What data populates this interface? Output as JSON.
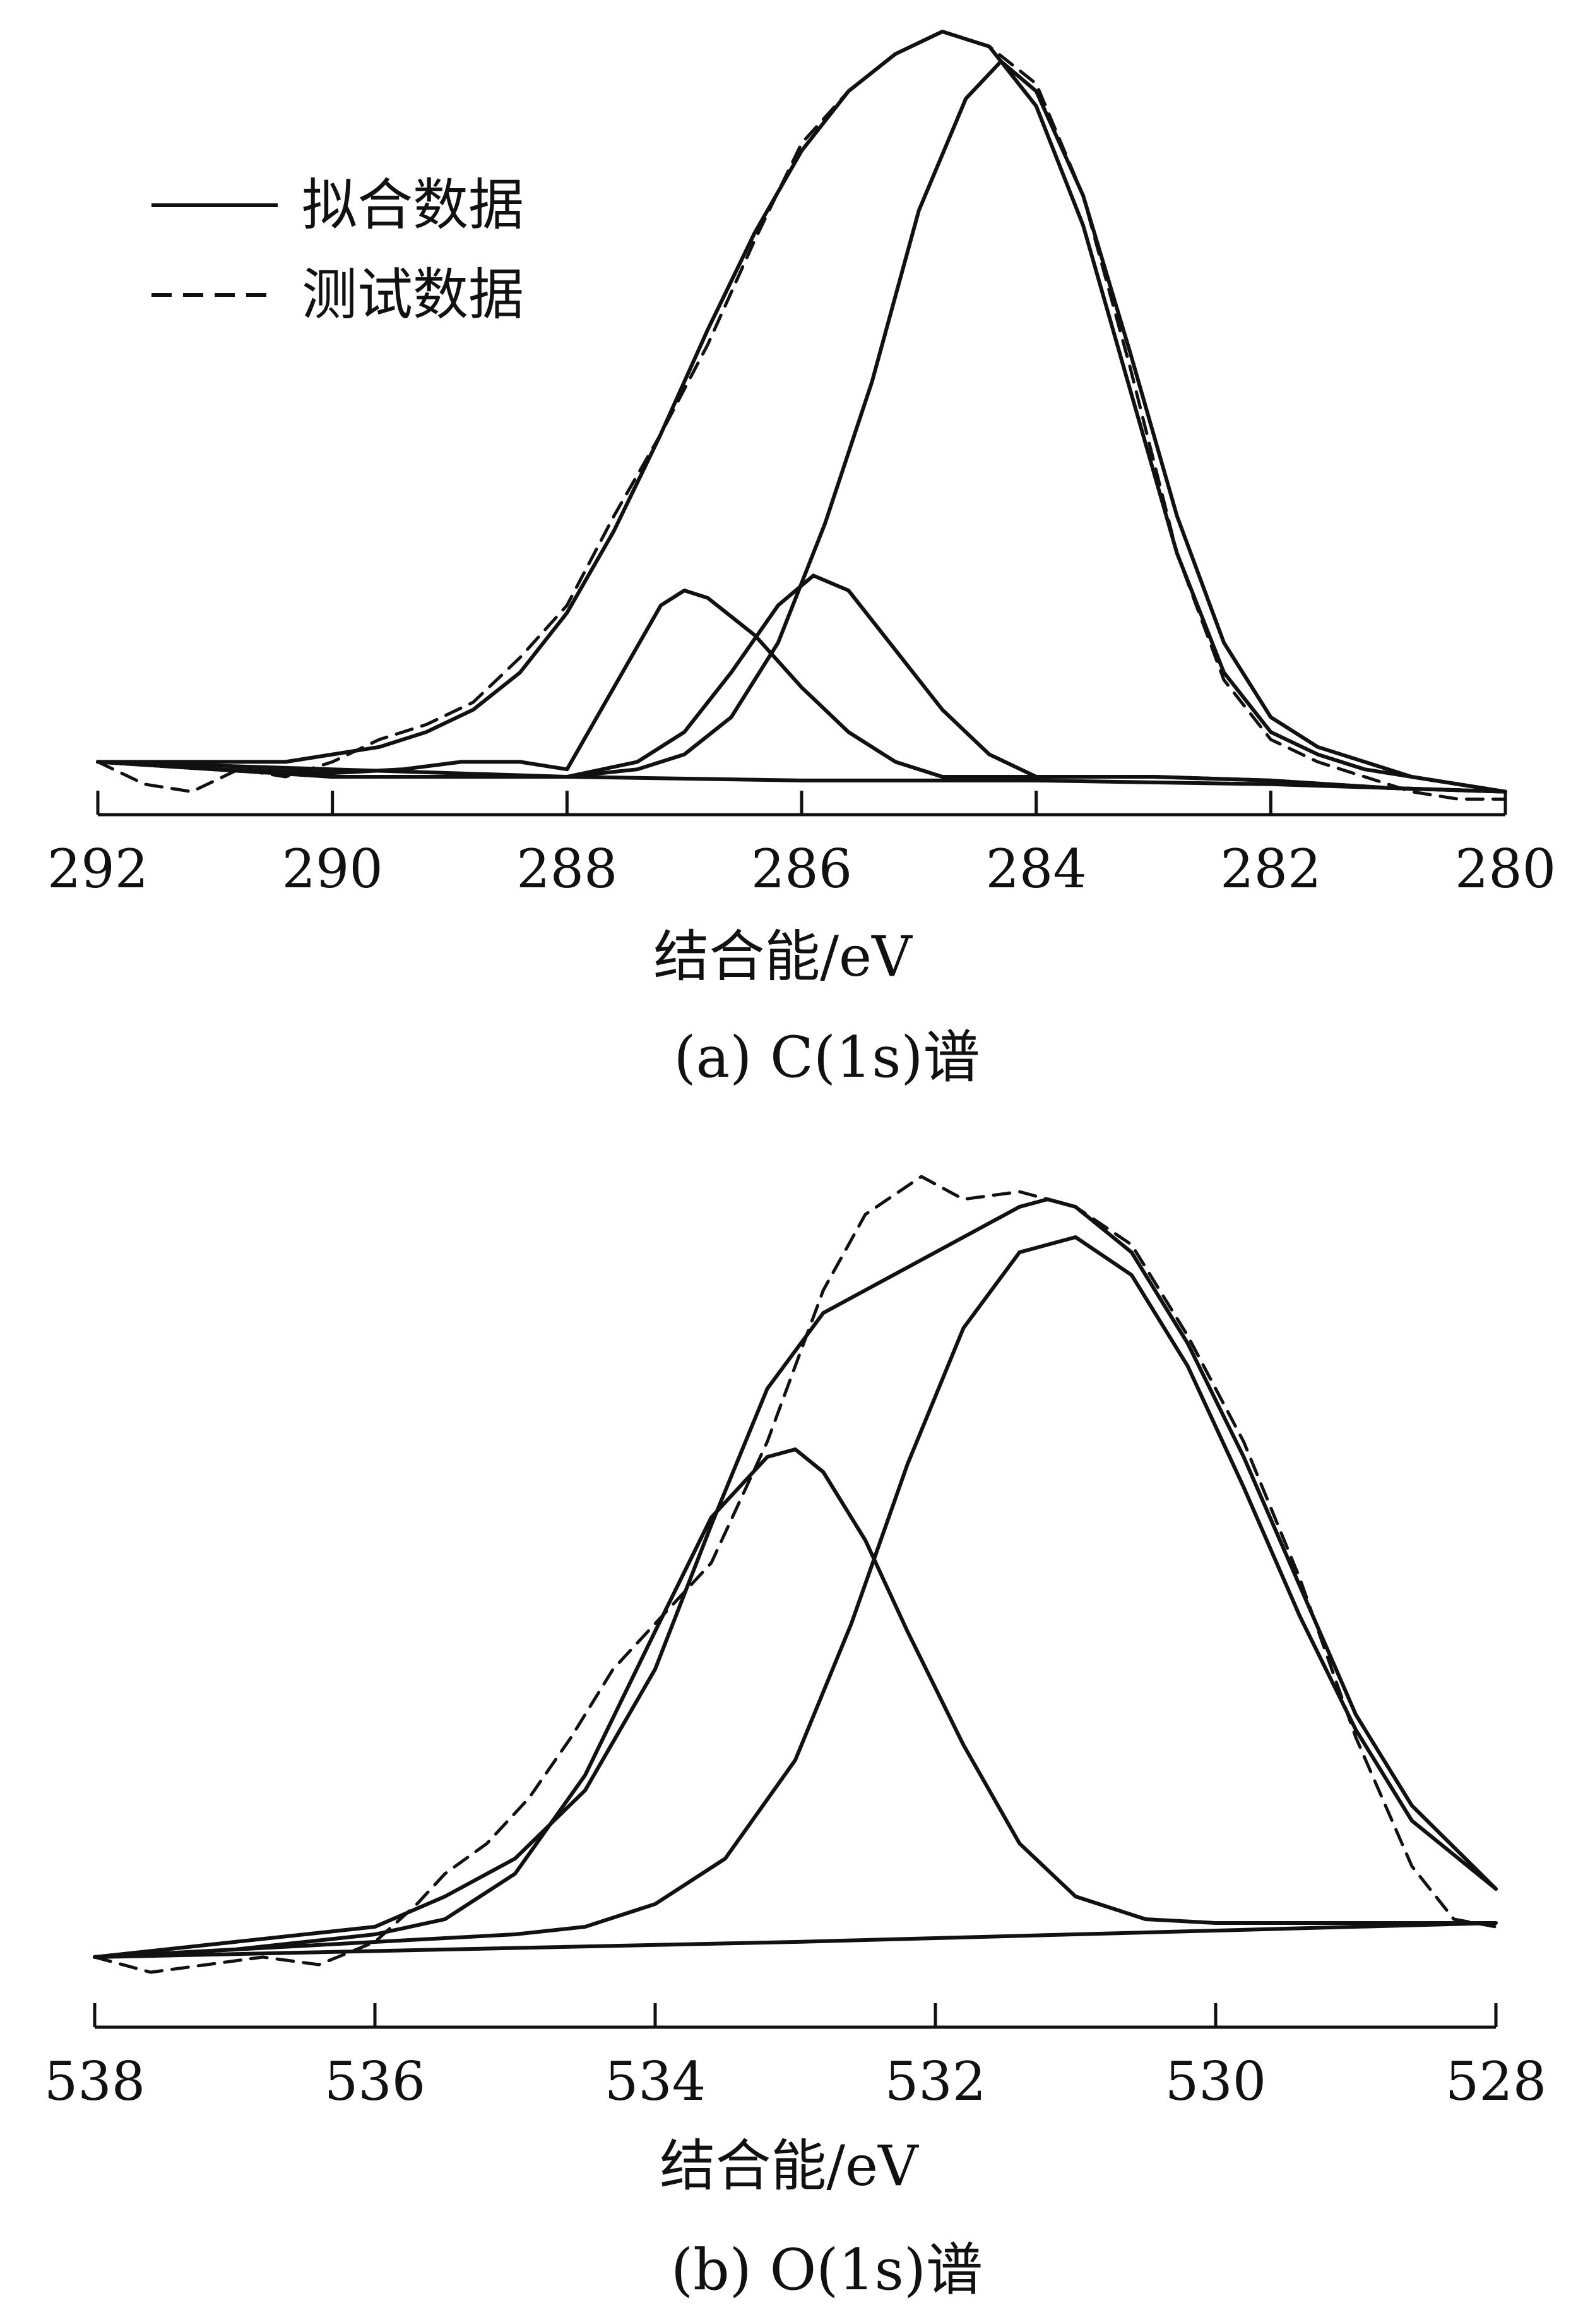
{
  "legend": {
    "fitted_label": "拟合数据",
    "measured_label": "测试数据"
  },
  "chart_data": [
    {
      "type": "line",
      "caption": "(a) C(1s)谱",
      "xlabel": "结合能/eV",
      "ylabel": "",
      "xlim": [
        292,
        280
      ],
      "x_reversed": true,
      "y_axis_shown": false,
      "grid": false,
      "legend_position": "top-left",
      "xticks": [
        292,
        290,
        288,
        286,
        284,
        282,
        280
      ],
      "series": [
        {
          "name": "测试数据",
          "style": "dashed",
          "x": [
            292,
            291.6,
            291.2,
            290.8,
            290.4,
            290.0,
            289.6,
            289.2,
            288.8,
            288.4,
            288.0,
            287.6,
            287.2,
            286.8,
            286.4,
            286.0,
            285.6,
            285.2,
            284.8,
            284.4,
            284.0,
            283.6,
            283.2,
            282.8,
            282.4,
            282.0,
            281.6,
            281.2,
            280.8,
            280.4,
            280.0
          ],
          "y": [
            0.02,
            -0.01,
            -0.02,
            0.01,
            0.0,
            0.02,
            0.05,
            0.07,
            0.1,
            0.16,
            0.23,
            0.35,
            0.46,
            0.58,
            0.72,
            0.85,
            0.92,
            0.97,
            1.0,
            0.98,
            0.93,
            0.78,
            0.55,
            0.3,
            0.13,
            0.05,
            0.02,
            0.0,
            -0.02,
            -0.03,
            -0.03
          ]
        },
        {
          "name": "拟合数据",
          "style": "solid",
          "x": [
            292,
            291.6,
            291.2,
            290.8,
            290.4,
            290.0,
            289.6,
            289.2,
            288.8,
            288.4,
            288.0,
            287.6,
            287.2,
            286.8,
            286.4,
            286.0,
            285.6,
            285.2,
            284.8,
            284.4,
            284.0,
            283.6,
            283.2,
            282.8,
            282.4,
            282.0,
            281.6,
            281.2,
            280.8,
            280.4,
            280.0
          ],
          "y": [
            0.02,
            0.02,
            0.02,
            0.02,
            0.02,
            0.03,
            0.04,
            0.06,
            0.09,
            0.14,
            0.22,
            0.33,
            0.46,
            0.6,
            0.73,
            0.84,
            0.92,
            0.97,
            1.0,
            0.98,
            0.9,
            0.74,
            0.52,
            0.3,
            0.14,
            0.06,
            0.03,
            0.01,
            0.0,
            -0.01,
            -0.02
          ]
        },
        {
          "name": "",
          "style": "solid",
          "x": [
            292,
            291,
            290,
            289.4,
            288.9,
            288.4,
            288.0,
            287.6,
            287.2,
            287.0,
            286.8,
            286.4,
            286.0,
            285.6,
            285.2,
            284.8,
            284.4,
            284.0,
            283.0,
            282.0,
            281.0,
            280.0
          ],
          "y": [
            0.02,
            0.01,
            0.005,
            0.01,
            0.02,
            0.02,
            0.01,
            0.12,
            0.23,
            0.25,
            0.24,
            0.19,
            0.12,
            0.06,
            0.02,
            0.0,
            0.0,
            0.0,
            0.0,
            -0.005,
            -0.015,
            -0.02
          ]
        },
        {
          "name": "",
          "style": "solid",
          "x": [
            292,
            291,
            290,
            289,
            288.0,
            287.4,
            287.0,
            286.6,
            286.2,
            285.9,
            285.6,
            285.2,
            284.8,
            284.4,
            284.0,
            283.5,
            283.0,
            282.0,
            281.0,
            280.0
          ],
          "y": [
            0.02,
            0.01,
            0.0,
            0.0,
            0.0,
            0.02,
            0.06,
            0.14,
            0.23,
            0.27,
            0.25,
            0.17,
            0.09,
            0.03,
            0.0,
            0.0,
            0.0,
            -0.005,
            -0.015,
            -0.02
          ]
        },
        {
          "name": "",
          "style": "solid",
          "x": [
            292,
            291,
            290,
            289,
            288.0,
            287.4,
            287.0,
            286.6,
            286.2,
            285.8,
            285.4,
            285.0,
            284.6,
            284.3,
            284.0,
            283.6,
            283.2,
            282.8,
            282.4,
            282.0,
            281.6,
            281.2,
            280.8,
            280.4,
            280.0
          ],
          "y": [
            0.02,
            0.01,
            0.0,
            0.0,
            0.0,
            0.01,
            0.03,
            0.08,
            0.18,
            0.34,
            0.53,
            0.76,
            0.91,
            0.96,
            0.92,
            0.78,
            0.57,
            0.35,
            0.18,
            0.08,
            0.04,
            0.02,
            0.0,
            -0.01,
            -0.02
          ]
        },
        {
          "name": "",
          "style": "solid",
          "x": [
            292,
            290,
            288,
            286,
            284,
            282,
            280
          ],
          "y": [
            0.02,
            0.01,
            0.0,
            -0.005,
            -0.005,
            -0.01,
            -0.02
          ]
        }
      ]
    },
    {
      "type": "line",
      "caption": "(b) O(1s)谱",
      "xlabel": "结合能/eV",
      "ylabel": "",
      "xlim": [
        538,
        528
      ],
      "x_reversed": true,
      "y_axis_shown": false,
      "grid": false,
      "xticks": [
        538,
        536,
        534,
        532,
        530,
        528
      ],
      "series": [
        {
          "name": "测试数据",
          "style": "dashed",
          "x": [
            538,
            537.6,
            537.2,
            536.8,
            536.4,
            536.0,
            535.7,
            535.5,
            535.2,
            534.9,
            534.6,
            534.3,
            534.0,
            533.6,
            533.2,
            532.8,
            532.5,
            532.1,
            531.8,
            531.4,
            531.0,
            530.6,
            530.2,
            529.8,
            529.4,
            529.0,
            528.6,
            528.3,
            528.0
          ],
          "y": [
            -0.02,
            -0.04,
            -0.03,
            -0.02,
            -0.03,
            0.0,
            0.05,
            0.09,
            0.13,
            0.19,
            0.27,
            0.36,
            0.42,
            0.5,
            0.66,
            0.86,
            0.96,
            1.01,
            0.98,
            0.99,
            0.97,
            0.92,
            0.8,
            0.66,
            0.48,
            0.27,
            0.1,
            0.03,
            0.02
          ]
        },
        {
          "name": "拟合数据",
          "style": "solid",
          "x": [
            538,
            537.5,
            537.0,
            536.5,
            536.0,
            535.5,
            535.0,
            534.5,
            534.0,
            533.6,
            533.2,
            532.8,
            532.5,
            532.2,
            531.8,
            531.4,
            531.2,
            531.0,
            530.6,
            530.2,
            529.8,
            529.4,
            529.0,
            528.6,
            528.0
          ],
          "y": [
            -0.02,
            -0.01,
            0.0,
            0.01,
            0.02,
            0.06,
            0.11,
            0.2,
            0.36,
            0.55,
            0.73,
            0.83,
            0.86,
            0.89,
            0.93,
            0.97,
            0.98,
            0.97,
            0.91,
            0.79,
            0.64,
            0.47,
            0.3,
            0.18,
            0.07
          ]
        },
        {
          "name": "",
          "style": "solid",
          "x": [
            538,
            537,
            536,
            535.5,
            535.0,
            534.5,
            534.0,
            533.6,
            533.2,
            533.0,
            532.8,
            532.5,
            532.2,
            531.8,
            531.4,
            531.0,
            530.5,
            530.0,
            529.5,
            529.0,
            528.5,
            528.0
          ],
          "y": [
            -0.02,
            -0.01,
            0.01,
            0.03,
            0.09,
            0.22,
            0.41,
            0.56,
            0.64,
            0.65,
            0.62,
            0.53,
            0.41,
            0.26,
            0.13,
            0.06,
            0.03,
            0.025,
            0.025,
            0.025,
            0.025,
            0.025
          ]
        },
        {
          "name": "",
          "style": "solid",
          "x": [
            538,
            537,
            536,
            535,
            534.5,
            534.0,
            533.5,
            533.0,
            532.6,
            532.2,
            531.8,
            531.4,
            531.0,
            530.6,
            530.2,
            529.8,
            529.4,
            529.0,
            528.6,
            528.0
          ],
          "y": [
            -0.02,
            -0.01,
            0.0,
            0.01,
            0.02,
            0.05,
            0.11,
            0.24,
            0.42,
            0.63,
            0.81,
            0.91,
            0.93,
            0.88,
            0.76,
            0.6,
            0.43,
            0.28,
            0.16,
            0.07
          ]
        },
        {
          "name": "",
          "style": "solid",
          "x": [
            538,
            533,
            528
          ],
          "y": [
            -0.02,
            0.0,
            0.025
          ]
        }
      ]
    }
  ]
}
